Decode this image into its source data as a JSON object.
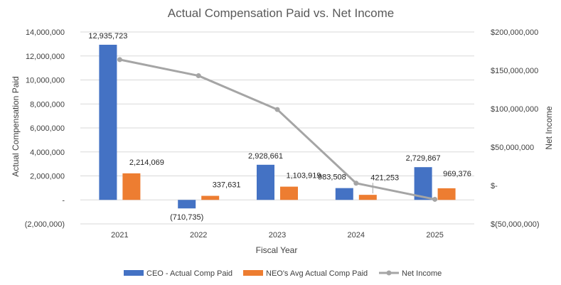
{
  "chart_data": {
    "type": "bar",
    "title": "Actual Compensation Paid vs. Net Income",
    "xlabel": "Fiscal Year",
    "ylabel": "Actual Compensation Paid",
    "y2label": "Net Income",
    "categories": [
      "2021",
      "2022",
      "2023",
      "2024",
      "2025"
    ],
    "ylim": [
      -2000000,
      14000000
    ],
    "y_ticks": [
      -2000000,
      0,
      2000000,
      4000000,
      6000000,
      8000000,
      10000000,
      12000000,
      14000000
    ],
    "y_tick_labels": [
      "(2,000,000)",
      "-",
      "2,000,000",
      "4,000,000",
      "6,000,000",
      "8,000,000",
      "10,000,000",
      "12,000,000",
      "14,000,000"
    ],
    "y2lim": [
      -50000000,
      200000000
    ],
    "y2_ticks": [
      -50000000,
      0,
      50000000,
      100000000,
      150000000,
      200000000
    ],
    "y2_tick_labels": [
      "$(50,000,000)",
      "$-",
      "$50,000,000",
      "$100,000,000",
      "$150,000,000",
      "$200,000,000"
    ],
    "series": [
      {
        "name": "CEO - Actual Comp Paid",
        "kind": "bar",
        "axis": "left",
        "color": "#4472C4",
        "values": [
          12935723,
          -710735,
          2928661,
          983508,
          2729867
        ],
        "labels": [
          "12,935,723",
          "(710,735)",
          "2,928,661",
          "983,508",
          "2,729,867"
        ]
      },
      {
        "name": "NEO's Avg Actual Comp Paid",
        "kind": "bar",
        "axis": "left",
        "color": "#ED7D31",
        "values": [
          2214069,
          337631,
          1103919,
          421253,
          969376
        ],
        "labels": [
          "2,214,069",
          "337,631",
          "1,103,919",
          "421,253",
          "969,376"
        ]
      },
      {
        "name": "Net Income",
        "kind": "line",
        "axis": "right",
        "color": "#A5A5A5",
        "values": [
          164000000,
          143000000,
          99000000,
          3000000,
          -18000000
        ]
      }
    ],
    "legend_position": "bottom"
  }
}
